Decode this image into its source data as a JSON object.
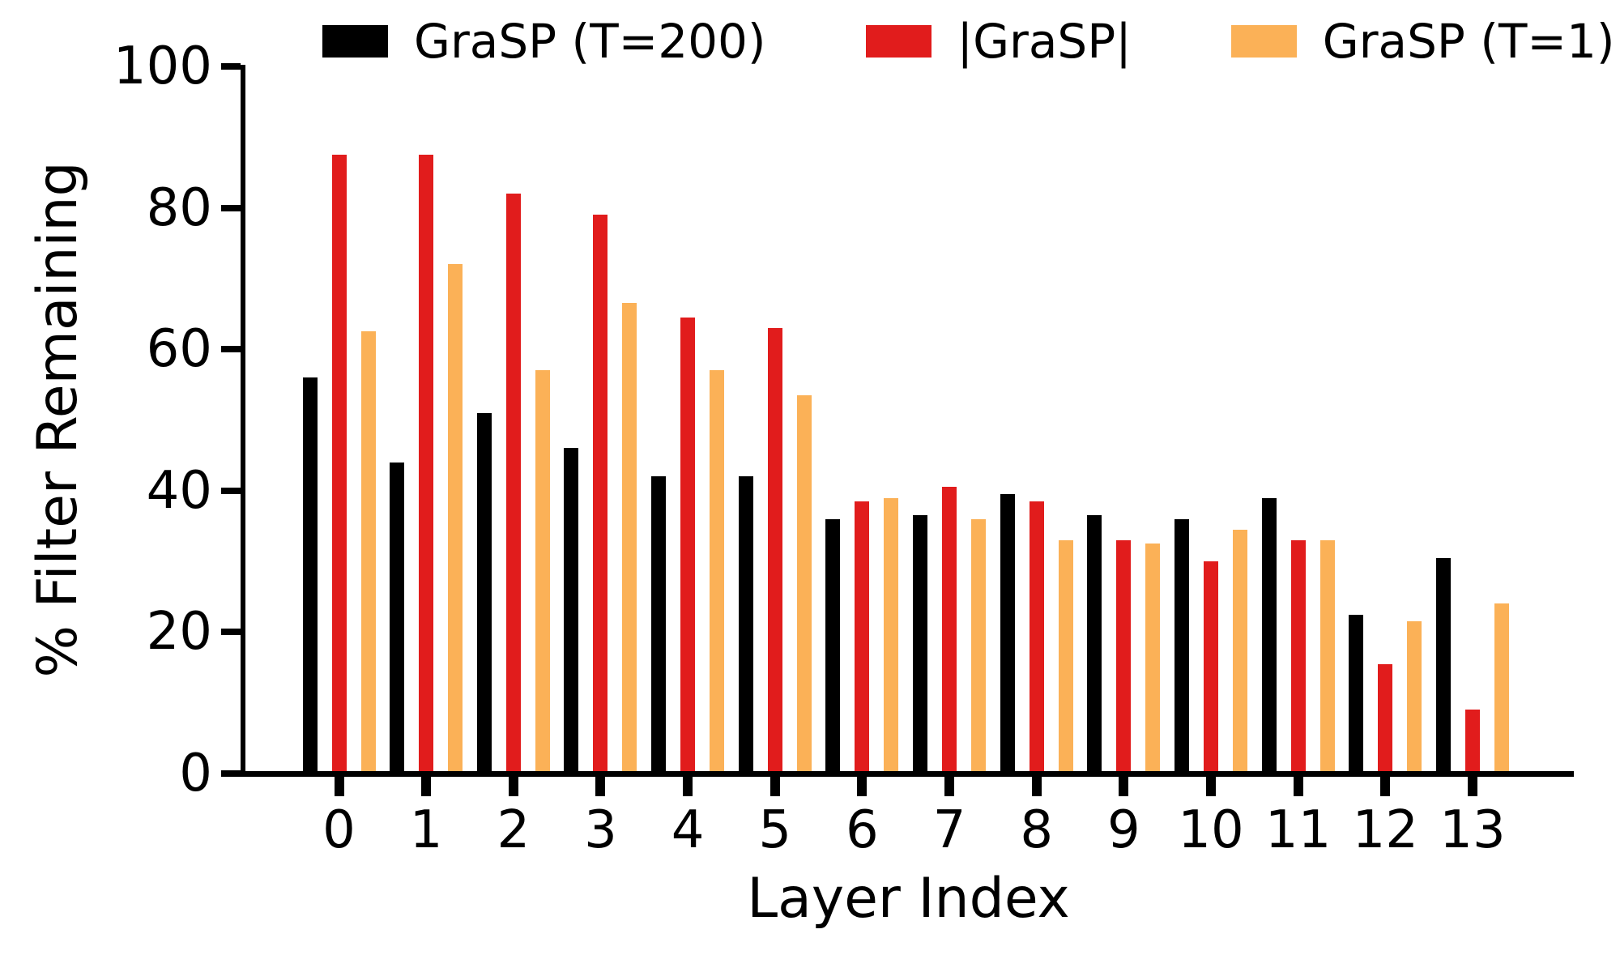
{
  "figure": {
    "background": "#ffffff",
    "text_color": "#000000"
  },
  "chart_data": {
    "type": "bar",
    "title": "",
    "xlabel": "Layer Index",
    "ylabel": "% Filter Remaining",
    "ylim": [
      0,
      100
    ],
    "yticks": [
      0,
      20,
      40,
      60,
      80,
      100
    ],
    "grid": false,
    "legend_position": "top",
    "categories": [
      "0",
      "1",
      "2",
      "3",
      "4",
      "5",
      "6",
      "7",
      "8",
      "9",
      "10",
      "11",
      "12",
      "13"
    ],
    "series": [
      {
        "name": "GraSP (T=200)",
        "color": "#000000",
        "values": [
          56,
          44,
          51,
          46,
          42,
          42,
          36,
          36.5,
          39.5,
          36.5,
          36,
          39,
          22.5,
          30.5
        ]
      },
      {
        "name": "|GraSP|",
        "color": "#e11c1c",
        "values": [
          87.5,
          87.5,
          82,
          79,
          64.5,
          63,
          38.5,
          40.5,
          38.5,
          33,
          30,
          33,
          15.5,
          9
        ]
      },
      {
        "name": "GraSP (T=1)",
        "color": "#fbb157",
        "values": [
          62.5,
          72,
          57,
          66.5,
          57,
          53.5,
          39,
          36,
          33,
          32.5,
          34.5,
          33,
          21.5,
          24
        ]
      }
    ]
  }
}
